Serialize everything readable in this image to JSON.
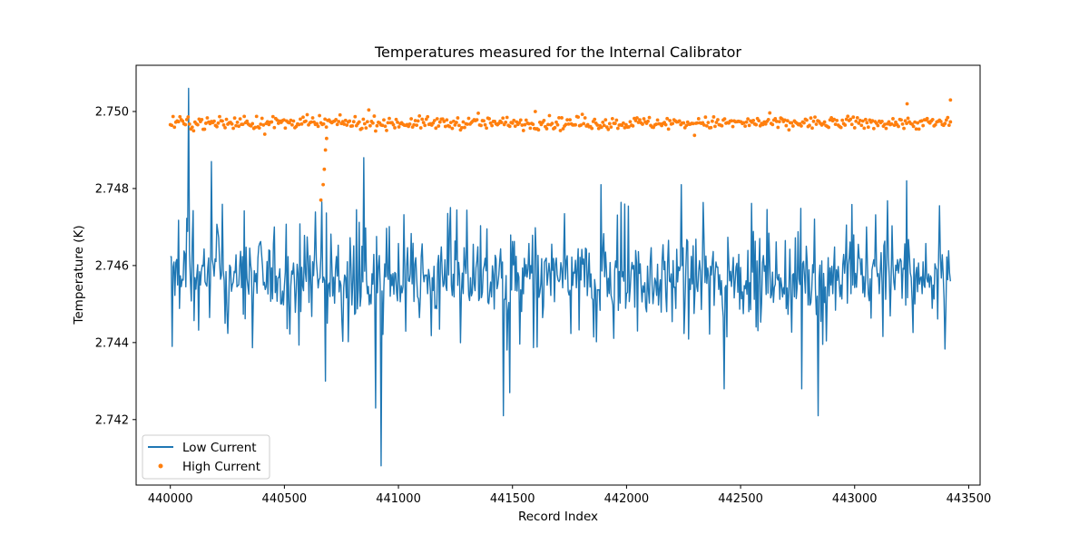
{
  "chart_data": {
    "type": "line",
    "title": "Temperatures measured for the Internal Calibrator",
    "xlabel": "Record Index",
    "ylabel": "Temperature (K)",
    "xlim": [
      439850,
      443550
    ],
    "ylim": [
      2.7403,
      2.7512
    ],
    "xticks": [
      440000,
      440500,
      441000,
      441500,
      442000,
      442500,
      443000,
      443500
    ],
    "yticks": [
      2.742,
      2.744,
      2.746,
      2.748,
      2.75
    ],
    "yticks_labels": [
      "2.742",
      "2.744",
      "2.746",
      "2.748",
      "2.750"
    ],
    "grid": false,
    "legend_position": "lower-left",
    "series": [
      {
        "name": "Low Current",
        "style": "line",
        "color": "#1f77b4",
        "x_range": [
          440000,
          443420
        ],
        "approx_mean": 2.7457,
        "approx_band": [
          2.7448,
          2.7469
        ],
        "notable_points": [
          {
            "x": 440010,
            "y": 2.7439
          },
          {
            "x": 440080,
            "y": 2.7506
          },
          {
            "x": 440180,
            "y": 2.7487
          },
          {
            "x": 440680,
            "y": 2.743
          },
          {
            "x": 440850,
            "y": 2.7488
          },
          {
            "x": 440900,
            "y": 2.7423
          },
          {
            "x": 440925,
            "y": 2.7408
          },
          {
            "x": 441460,
            "y": 2.7421
          },
          {
            "x": 441490,
            "y": 2.7427
          },
          {
            "x": 441890,
            "y": 2.7481
          },
          {
            "x": 442240,
            "y": 2.7481
          },
          {
            "x": 442430,
            "y": 2.7428
          },
          {
            "x": 442770,
            "y": 2.7428
          },
          {
            "x": 442840,
            "y": 2.7421
          },
          {
            "x": 443230,
            "y": 2.7482
          }
        ]
      },
      {
        "name": "High Current",
        "style": "scatter",
        "color": "#ff7f0e",
        "x_range": [
          440000,
          443420
        ],
        "approx_mean": 2.7497,
        "approx_band": [
          2.7495,
          2.7499
        ],
        "notable_points": [
          {
            "x": 440660,
            "y": 2.7477
          },
          {
            "x": 440670,
            "y": 2.7481
          },
          {
            "x": 440675,
            "y": 2.7485
          },
          {
            "x": 440680,
            "y": 2.749
          },
          {
            "x": 440685,
            "y": 2.7493
          },
          {
            "x": 441600,
            "y": 2.75
          },
          {
            "x": 443230,
            "y": 2.7502
          },
          {
            "x": 443420,
            "y": 2.7503
          }
        ]
      }
    ]
  }
}
